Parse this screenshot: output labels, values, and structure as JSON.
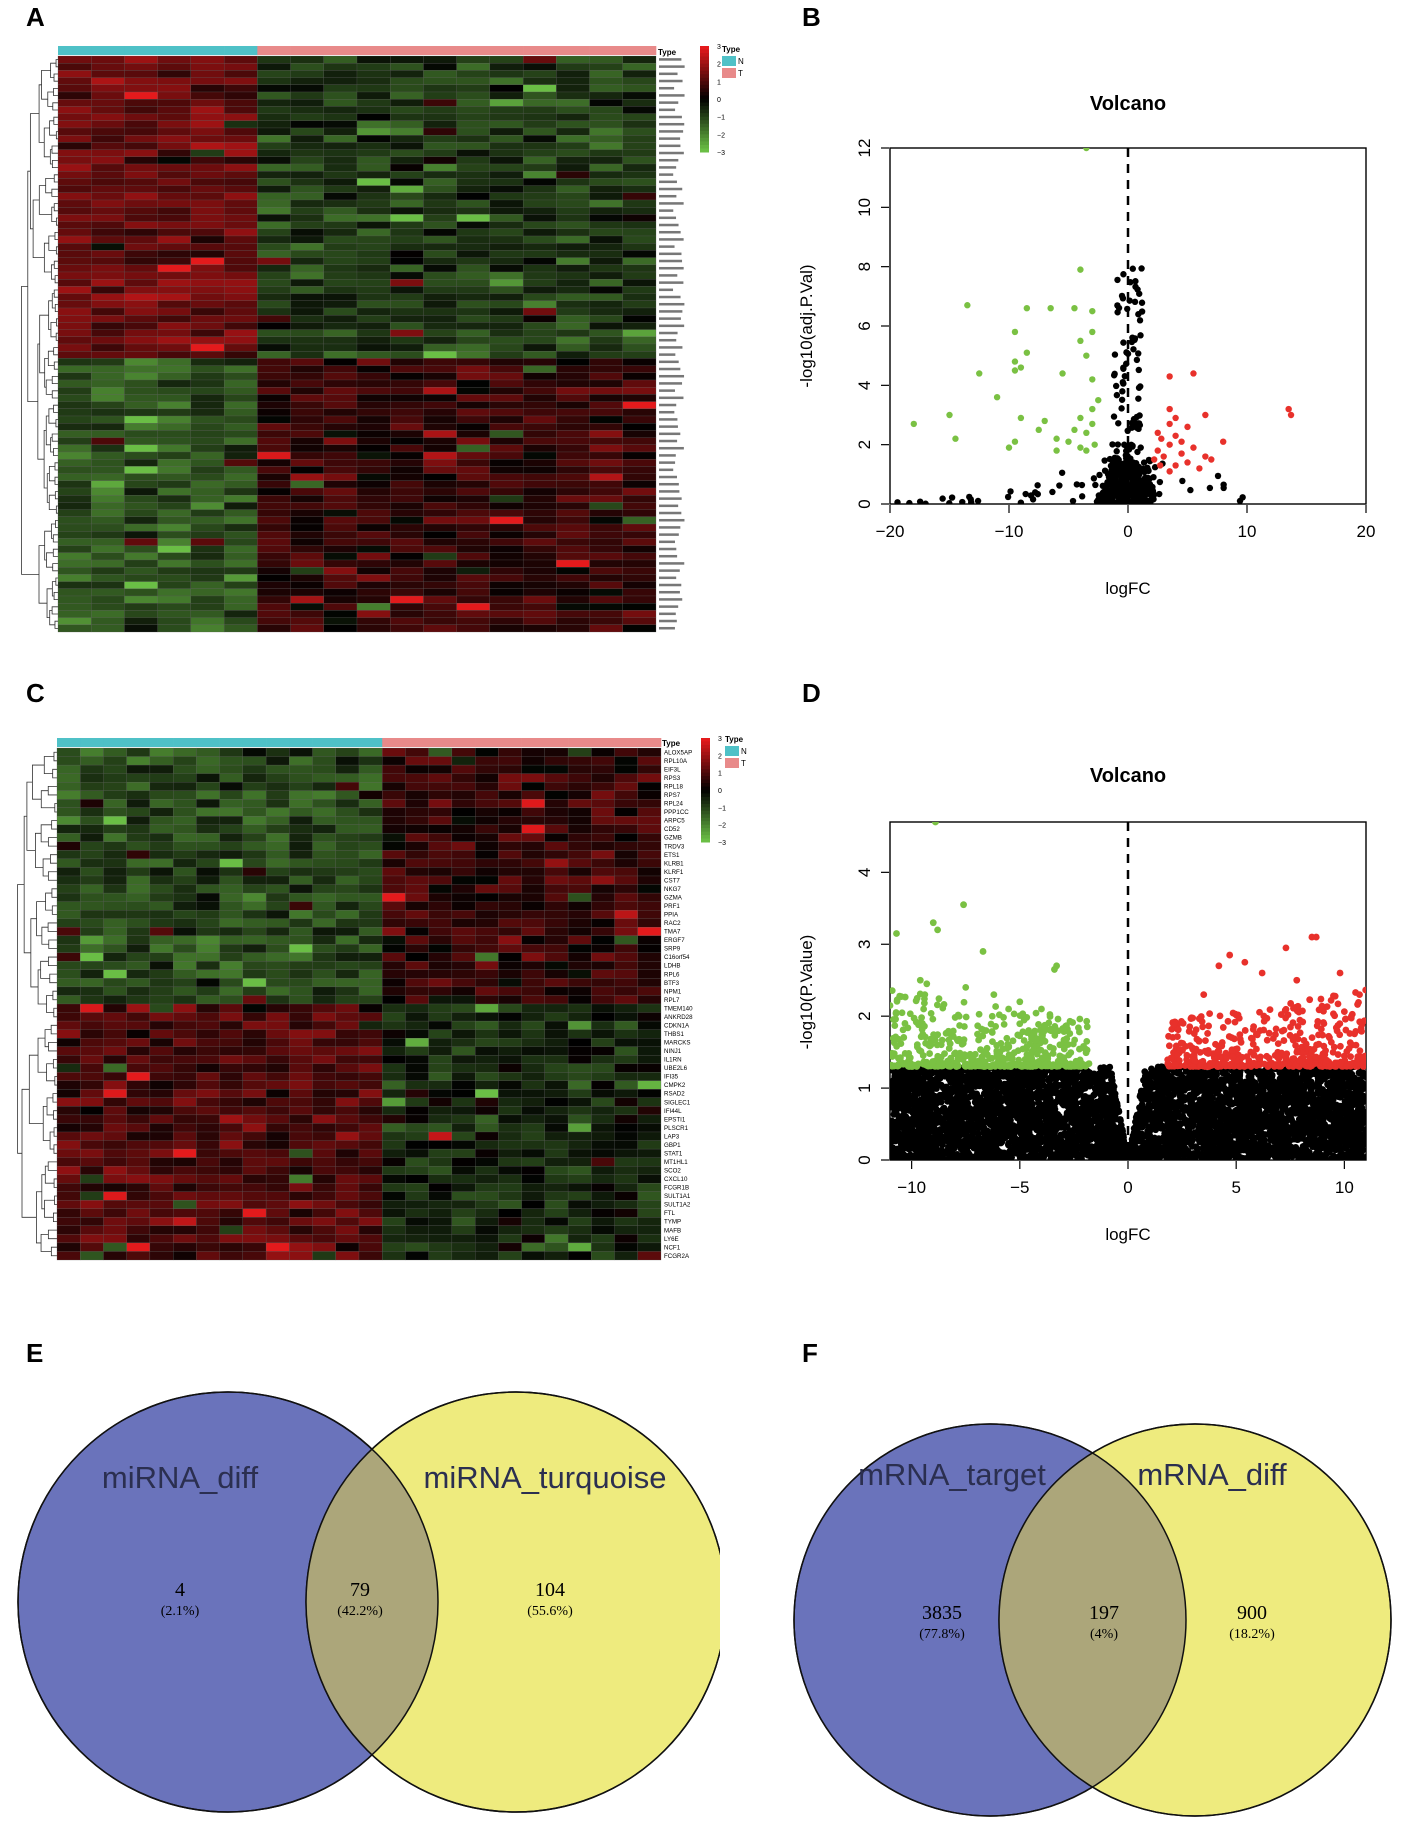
{
  "panel_letters": [
    "A",
    "B",
    "C",
    "D",
    "E",
    "F"
  ],
  "colors": {
    "n_group": "#4fc1c7",
    "t_group": "#e88a8a",
    "up": "#e8312b",
    "down": "#7ac143",
    "ns": "#000000",
    "heat_high": "#e41a1c",
    "heat_mid": "#000000",
    "heat_low": "#6abe45",
    "venn_left": "#6a73bb",
    "venn_right": "#eeeb7e",
    "venn_overlap": "#aca67a"
  },
  "chart_data": [
    {
      "id": "A",
      "type": "heatmap",
      "title": "",
      "annotation_label": "Type",
      "legend_title": "Type",
      "legend_items": [
        "N",
        "T"
      ],
      "scale_ticks": [
        3,
        2,
        1,
        0,
        -1,
        -2,
        -3
      ],
      "n_columns": 18,
      "n_group_columns": 6,
      "n_rows": 80,
      "row_labels_legible": false
    },
    {
      "id": "B",
      "type": "scatter",
      "title": "Volcano",
      "xlabel": "logFC",
      "ylabel": "-log10(adj.P.Val)",
      "xlim": [
        -20,
        20
      ],
      "ylim": [
        0,
        12
      ],
      "xticks": [
        -20,
        -10,
        0,
        10,
        20
      ],
      "yticks": [
        0,
        2,
        4,
        6,
        8,
        10,
        12
      ],
      "series": [
        {
          "name": "down",
          "color": "#7ac143",
          "points": [
            [
              -3.5,
              12
            ],
            [
              -4,
              7.9
            ],
            [
              -13.5,
              6.7
            ],
            [
              -8.5,
              6.6
            ],
            [
              -6.5,
              6.6
            ],
            [
              -4.5,
              6.6
            ],
            [
              -3,
              6.5
            ],
            [
              -9.5,
              5.8
            ],
            [
              -3,
              5.8
            ],
            [
              -4,
              5.5
            ],
            [
              -8.5,
              5.1
            ],
            [
              -3.5,
              5
            ],
            [
              -9.5,
              4.8
            ],
            [
              -9,
              4.6
            ],
            [
              -9.5,
              4.5
            ],
            [
              -12.5,
              4.4
            ],
            [
              -5.5,
              4.4
            ],
            [
              -3,
              4.2
            ],
            [
              -11,
              3.6
            ],
            [
              -2.5,
              3.5
            ],
            [
              -3,
              3.2
            ],
            [
              -15,
              3
            ],
            [
              -9,
              2.9
            ],
            [
              -7,
              2.8
            ],
            [
              -4,
              2.9
            ],
            [
              -3,
              2.7
            ],
            [
              -18,
              2.7
            ],
            [
              -7.5,
              2.5
            ],
            [
              -4.5,
              2.5
            ],
            [
              -3.5,
              2.4
            ],
            [
              -6,
              2.2
            ],
            [
              -9.5,
              2.1
            ],
            [
              -5,
              2.1
            ],
            [
              -4,
              1.9
            ],
            [
              -10,
              1.9
            ],
            [
              -14.5,
              2.2
            ],
            [
              -3.5,
              1.8
            ],
            [
              -6,
              1.8
            ],
            [
              -2.8,
              2
            ]
          ]
        },
        {
          "name": "up",
          "color": "#e8312b",
          "points": [
            [
              13.5,
              3.2
            ],
            [
              13.7,
              3
            ],
            [
              3.5,
              4.3
            ],
            [
              5.5,
              4.4
            ],
            [
              3.5,
              3.2
            ],
            [
              4,
              2.9
            ],
            [
              6.5,
              3
            ],
            [
              3.5,
              2.7
            ],
            [
              5,
              2.6
            ],
            [
              2.5,
              2.4
            ],
            [
              4,
              2.3
            ],
            [
              2.8,
              2.2
            ],
            [
              4.5,
              2.1
            ],
            [
              8,
              2.1
            ],
            [
              3.5,
              2
            ],
            [
              5.5,
              1.9
            ],
            [
              2.5,
              1.8
            ],
            [
              4.5,
              1.7
            ],
            [
              3,
              1.6
            ],
            [
              6.5,
              1.6
            ],
            [
              2.2,
              1.5
            ],
            [
              5,
              1.4
            ],
            [
              7,
              1.5
            ],
            [
              4,
              1.3
            ],
            [
              2.7,
              1.3
            ],
            [
              6,
              1.2
            ],
            [
              3.5,
              1.1
            ]
          ]
        }
      ],
      "ns_cluster": {
        "name": "not significant",
        "color": "#000000",
        "x_range": [
          -19.5,
          10
        ],
        "y_max": 8
      }
    },
    {
      "id": "C",
      "type": "heatmap",
      "title": "",
      "annotation_label": "Type",
      "legend_title": "Type",
      "legend_items": [
        "N",
        "T"
      ],
      "scale_ticks": [
        3,
        2,
        1,
        0,
        -1,
        -2,
        -3
      ],
      "n_columns": 26,
      "n_group_columns": 14,
      "row_labels": [
        "ALOX5AP",
        "RPL10A",
        "EIF3L",
        "RPS3",
        "RPL18",
        "RPS7",
        "RPL24",
        "PPP1CC",
        "ARPC5",
        "CD52",
        "GZMB",
        "TRDV3",
        "ETS1",
        "KLRB1",
        "KLRF1",
        "CST7",
        "NKG7",
        "GZMA",
        "PRF1",
        "PPIA",
        "RAC2",
        "TMA7",
        "ERGF7",
        "SRP9",
        "C16orf54",
        "LDHB",
        "RPL6",
        "BTF3",
        "NPM1",
        "RPL7",
        "TMEM140",
        "ANKRD28",
        "CDKN1A",
        "THBS1",
        "MARCKS",
        "NINJ1",
        "IL1RN",
        "UBE2L6",
        "IFI35",
        "CMPK2",
        "RSAD2",
        "SIGLEC1",
        "IFI44L",
        "EPSTI1",
        "PLSCR1",
        "LAP3",
        "GBP1",
        "STAT1",
        "MT1HL1",
        "SCO2",
        "CXCL10",
        "FCGR1B",
        "SULT1A1",
        "SULT1A2",
        "FTL",
        "TYMP",
        "MAFB",
        "LY6E",
        "NCF1",
        "FCGR2A"
      ]
    },
    {
      "id": "D",
      "type": "scatter",
      "title": "Volcano",
      "xlabel": "logFC",
      "ylabel": "-log10(P.Value)",
      "xlim": [
        -11,
        11
      ],
      "ylim": [
        0,
        4.7
      ],
      "xticks": [
        -10,
        -5,
        0,
        5,
        10
      ],
      "yticks": [
        0,
        1,
        2,
        3,
        4
      ],
      "significance_threshold": 1.3,
      "series": [
        {
          "name": "down",
          "color": "#7ac143",
          "points": [
            [
              -8.9,
              4.7
            ],
            [
              -7.6,
              3.55
            ],
            [
              -9,
              3.3
            ],
            [
              -10.7,
              3.15
            ],
            [
              -8.8,
              3.2
            ],
            [
              -6.7,
              2.9
            ],
            [
              -3.3,
              2.7
            ],
            [
              -3.4,
              2.65
            ],
            [
              -9.6,
              2.5
            ],
            [
              -7.5,
              2.4
            ],
            [
              -5,
              2.2
            ],
            [
              -9.3,
              2.45
            ],
            [
              -6.2,
              2.3
            ],
            [
              -4,
              2.1
            ]
          ]
        },
        {
          "name": "up",
          "color": "#e8312b",
          "points": [
            [
              8.5,
              3.1
            ],
            [
              8.7,
              3.1
            ],
            [
              7.3,
              2.95
            ],
            [
              4.7,
              2.85
            ],
            [
              5.4,
              2.75
            ],
            [
              6.2,
              2.6
            ],
            [
              9.8,
              2.6
            ],
            [
              4.2,
              2.7
            ],
            [
              10.7,
              2.3
            ],
            [
              7.8,
              2.5
            ],
            [
              3.5,
              2.3
            ]
          ]
        }
      ],
      "ns_cluster": {
        "name": "not significant",
        "color": "#000000",
        "x_range": [
          -11,
          11
        ],
        "y_max": 1.3
      }
    },
    {
      "id": "E",
      "type": "venn",
      "sets": [
        {
          "label": "miRNA_diff",
          "only_count": "4",
          "only_pct": "(2.1%)"
        },
        {
          "label": "miRNA_turquoise",
          "only_count": "104",
          "only_pct": "(55.6%)"
        }
      ],
      "overlap": {
        "count": "79",
        "pct": "(42.2%)"
      }
    },
    {
      "id": "F",
      "type": "venn",
      "sets": [
        {
          "label": "mRNA_target",
          "only_count": "3835",
          "only_pct": "(77.8%)"
        },
        {
          "label": "mRNA_diff",
          "only_count": "900",
          "only_pct": "(18.2%)"
        }
      ],
      "overlap": {
        "count": "197",
        "pct": "(4%)"
      }
    }
  ]
}
